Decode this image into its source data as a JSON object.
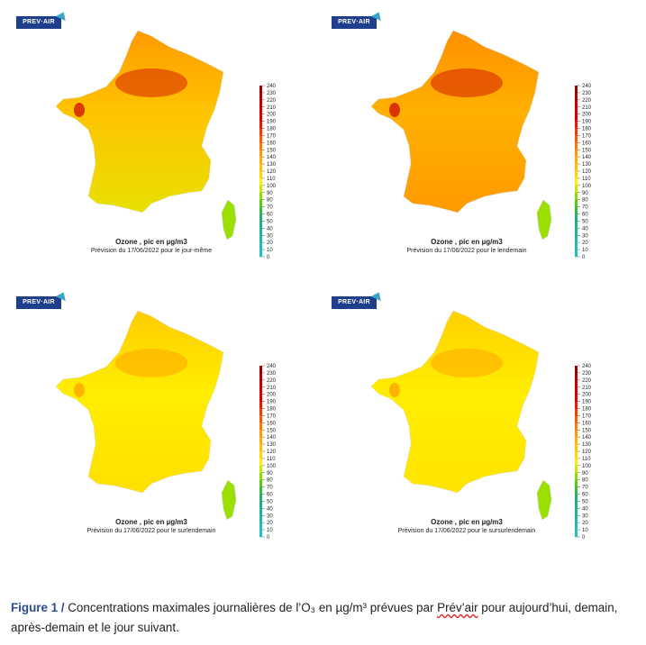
{
  "logo_text": "PREV·AIR",
  "colorbar": {
    "ticks": [
      "240",
      "230",
      "220",
      "210",
      "200",
      "190",
      "180",
      "170",
      "160",
      "150",
      "140",
      "130",
      "120",
      "110",
      "100",
      "90",
      "80",
      "70",
      "60",
      "50",
      "40",
      "30",
      "20",
      "10",
      "0"
    ],
    "colors": [
      "#9a0000",
      "#b30000",
      "#cc0000",
      "#d70000",
      "#e00000",
      "#ea1a00",
      "#f53a00",
      "#ff5a00",
      "#ff7a00",
      "#ff9a00",
      "#ffb000",
      "#ffc400",
      "#ffd800",
      "#ffee00",
      "#ccea00",
      "#8fdc00",
      "#5acc10",
      "#33bb40",
      "#22b070",
      "#1fb08a",
      "#20b49a",
      "#20b8a8",
      "#22bcb6",
      "#24c0c0"
    ]
  },
  "panels": [
    {
      "id": "p1",
      "title": "Ozone , pic en µg/m3",
      "subtitle": "Prévision du 17/06/2022 pour le jour-même",
      "palette": {
        "north": "#ff9a00",
        "center": "#ffc400",
        "south": "#e8e000",
        "hot": "#cc0000"
      }
    },
    {
      "id": "p2",
      "title": "Ozone , pic en µg/m3",
      "subtitle": "Prévision du 17/06/2022 pour le lendemain",
      "palette": {
        "north": "#ff9000",
        "center": "#ffb000",
        "south": "#ff9a00",
        "hot": "#cc0000"
      }
    },
    {
      "id": "p3",
      "title": "Ozone , pic en µg/m3",
      "subtitle": "Prévision du 17/06/2022 pour le surlendemain",
      "palette": {
        "north": "#ffcc00",
        "center": "#ffee00",
        "south": "#ffe000",
        "hot": "#ff9a00"
      }
    },
    {
      "id": "p4",
      "title": "Ozone , pic en µg/m3",
      "subtitle": "Prévision du 17/06/2022 pour le sursurlendemain",
      "palette": {
        "north": "#ffd000",
        "center": "#ffee00",
        "south": "#ffe400",
        "hot": "#ff9a00"
      }
    }
  ],
  "caption": {
    "label": "Figure 1 /",
    "text_before": "Concentrations maximales journalières de l’O₃ en µg/m³ prévues par",
    "brand": "Prév’air",
    "text_after": "pour aujourd’hui, demain, après-demain et le jour suivant."
  }
}
